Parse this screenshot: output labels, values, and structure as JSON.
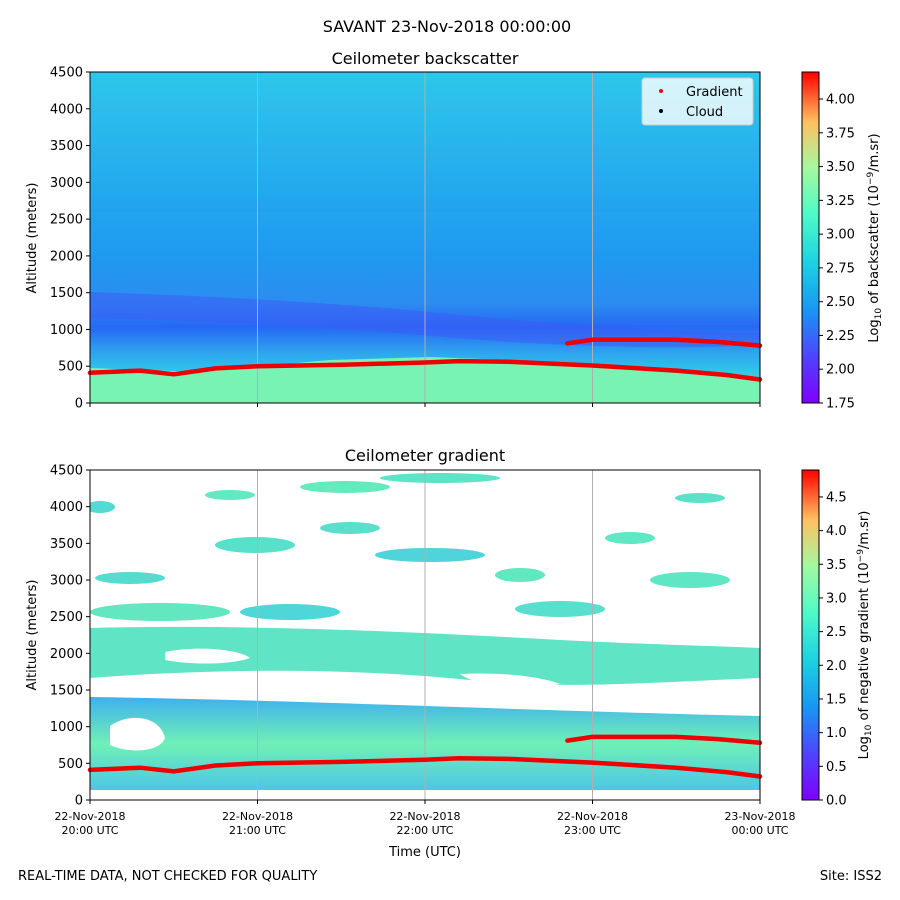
{
  "figure": {
    "suptitle": "SAVANT 23-Nov-2018 00:00:00",
    "footer_left": "REAL-TIME DATA, NOT CHECKED FOR QUALITY",
    "footer_right": "Site: ISS2"
  },
  "chart_data": [
    {
      "type": "heatmap",
      "title": "Ceilometer backscatter",
      "ylabel": "Altitude (meters)",
      "ylim": [
        0,
        4500
      ],
      "yticks": [
        0,
        500,
        1000,
        1500,
        2000,
        2500,
        3000,
        3500,
        4000,
        4500
      ],
      "x_hours": [
        20,
        24
      ],
      "xtick_hours": [
        20,
        21,
        22,
        23,
        24
      ],
      "colorbar": {
        "label": "Log10 of backscatter (10^-9/m.sr)",
        "range": [
          1.75,
          4.2
        ],
        "ticks": [
          "1.75",
          "2.00",
          "2.25",
          "2.50",
          "2.75",
          "3.00",
          "3.25",
          "3.50",
          "3.75",
          "4.00"
        ]
      },
      "legend": {
        "position": "top-right",
        "entries": [
          {
            "label": "Gradient",
            "color": "#ff0000"
          },
          {
            "label": "Cloud",
            "color": "#000000"
          }
        ]
      },
      "series": [
        {
          "name": "Gradient (lower layer)",
          "hours": [
            20.0,
            20.3,
            20.5,
            20.75,
            21.0,
            21.5,
            22.0,
            22.2,
            22.5,
            23.0,
            23.5,
            23.8,
            24.0
          ],
          "altitude": [
            410,
            440,
            390,
            470,
            500,
            520,
            550,
            570,
            560,
            510,
            440,
            380,
            320
          ]
        },
        {
          "name": "Gradient (upper layer)",
          "hours": [
            22.85,
            23.0,
            23.2,
            23.5,
            23.75,
            24.0
          ],
          "altitude": [
            810,
            860,
            860,
            860,
            830,
            780
          ]
        }
      ]
    },
    {
      "type": "heatmap",
      "title": "Ceilometer gradient",
      "ylabel": "Altitude (meters)",
      "xlabel": "Time (UTC)",
      "ylim": [
        0,
        4500
      ],
      "yticks": [
        0,
        500,
        1000,
        1500,
        2000,
        2500,
        3000,
        3500,
        4000,
        4500
      ],
      "x_hours": [
        20,
        24
      ],
      "xtick_hours": [
        20,
        21,
        22,
        23,
        24
      ],
      "xtick_labels": [
        [
          "22-Nov-2018",
          "20:00 UTC"
        ],
        [
          "22-Nov-2018",
          "21:00 UTC"
        ],
        [
          "22-Nov-2018",
          "22:00 UTC"
        ],
        [
          "22-Nov-2018",
          "23:00 UTC"
        ],
        [
          "23-Nov-2018",
          "00:00 UTC"
        ]
      ],
      "colorbar": {
        "label": "Log10 of negative gradient (10^-9/m.sr)",
        "range": [
          0,
          4.9
        ],
        "ticks": [
          "0.0",
          "0.5",
          "1.0",
          "1.5",
          "2.0",
          "2.5",
          "3.0",
          "3.5",
          "4.0",
          "4.5"
        ]
      },
      "series": [
        {
          "name": "Gradient (lower layer)",
          "hours": [
            20.0,
            20.3,
            20.5,
            20.75,
            21.0,
            21.5,
            22.0,
            22.2,
            22.5,
            23.0,
            23.5,
            23.8,
            24.0
          ],
          "altitude": [
            410,
            440,
            390,
            470,
            500,
            520,
            550,
            570,
            560,
            510,
            440,
            380,
            320
          ]
        },
        {
          "name": "Gradient (upper layer)",
          "hours": [
            22.85,
            23.0,
            23.2,
            23.5,
            23.75,
            24.0
          ],
          "altitude": [
            810,
            860,
            860,
            860,
            830,
            780
          ]
        }
      ]
    }
  ]
}
